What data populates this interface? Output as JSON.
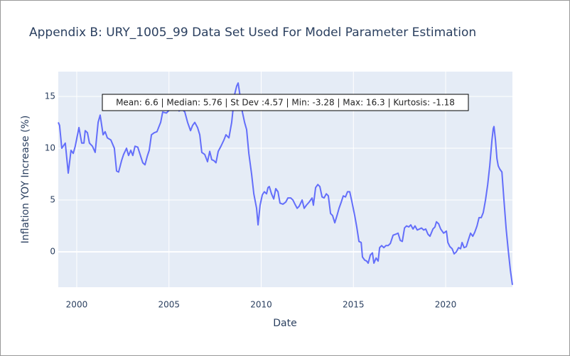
{
  "chart_data": {
    "type": "line",
    "title": "Appendix B: URY_1005_99 Data Set Used For Model Parameter Estimation",
    "x_label": "Date",
    "y_label": "Inflation YOY Increase (%)",
    "annotation": "Mean: 6.6 | Median: 5.76 | St Dev :4.57 | Min: -3.28 | Max: 16.3 | Kurtosis: -1.18",
    "grid": true,
    "xlim": [
      1999.0,
      2023.62
    ],
    "xticks": [
      2000,
      2005,
      2010,
      2015,
      2020
    ],
    "ylim": [
      -3.42,
      17.4
    ],
    "yticks": [
      0,
      5,
      10,
      15
    ],
    "series": [
      {
        "color": "#636efa",
        "x": [
          1999.0,
          1999.07,
          1999.19,
          1999.38,
          1999.54,
          1999.69,
          1999.81,
          1999.92,
          2000.12,
          2000.27,
          2000.39,
          2000.46,
          2000.58,
          2000.69,
          2000.85,
          2001.0,
          2001.16,
          2001.27,
          2001.43,
          2001.54,
          2001.66,
          2001.85,
          2002.04,
          2002.16,
          2002.27,
          2002.43,
          2002.54,
          2002.7,
          2002.81,
          2002.93,
          2003.04,
          2003.16,
          2003.31,
          2003.47,
          2003.58,
          2003.7,
          2003.82,
          2003.93,
          2004.05,
          2004.2,
          2004.35,
          2004.55,
          2004.66,
          2004.86,
          2004.97,
          2005.09,
          2005.24,
          2005.36,
          2005.55,
          2005.7,
          2005.86,
          2006.01,
          2006.17,
          2006.28,
          2006.4,
          2006.55,
          2006.67,
          2006.78,
          2006.94,
          2007.09,
          2007.21,
          2007.32,
          2007.44,
          2007.55,
          2007.67,
          2007.82,
          2007.98,
          2008.09,
          2008.25,
          2008.4,
          2008.56,
          2008.67,
          2008.75,
          2008.86,
          2008.98,
          2009.1,
          2009.21,
          2009.33,
          2009.48,
          2009.6,
          2009.75,
          2009.83,
          2009.94,
          2010.06,
          2010.17,
          2010.29,
          2010.37,
          2010.44,
          2010.56,
          2010.68,
          2010.79,
          2010.91,
          2011.02,
          2011.18,
          2011.33,
          2011.45,
          2011.6,
          2011.72,
          2011.83,
          2011.95,
          2012.06,
          2012.22,
          2012.33,
          2012.45,
          2012.6,
          2012.76,
          2012.83,
          2012.95,
          2013.07,
          2013.18,
          2013.3,
          2013.41,
          2013.53,
          2013.64,
          2013.76,
          2013.87,
          2013.99,
          2014.11,
          2014.22,
          2014.34,
          2014.45,
          2014.57,
          2014.68,
          2014.8,
          2014.91,
          2015.07,
          2015.18,
          2015.3,
          2015.42,
          2015.49,
          2015.61,
          2015.72,
          2015.8,
          2015.92,
          2016.03,
          2016.11,
          2016.23,
          2016.34,
          2016.42,
          2016.53,
          2016.65,
          2016.76,
          2016.88,
          2017.0,
          2017.15,
          2017.3,
          2017.42,
          2017.54,
          2017.65,
          2017.77,
          2017.88,
          2018.0,
          2018.11,
          2018.23,
          2018.34,
          2018.46,
          2018.58,
          2018.69,
          2018.81,
          2018.92,
          2019.04,
          2019.15,
          2019.31,
          2019.42,
          2019.5,
          2019.62,
          2019.73,
          2019.89,
          2020.04,
          2020.12,
          2020.23,
          2020.35,
          2020.46,
          2020.58,
          2020.7,
          2020.81,
          2020.89,
          2021.0,
          2021.12,
          2021.24,
          2021.35,
          2021.47,
          2021.58,
          2021.7,
          2021.81,
          2021.93,
          2022.04,
          2022.16,
          2022.28,
          2022.39,
          2022.51,
          2022.58,
          2022.62,
          2022.7,
          2022.78,
          2022.85,
          2022.93,
          2023.05,
          2023.16,
          2023.28,
          2023.39,
          2023.51,
          2023.62
        ],
        "values": [
          12.5,
          12.2,
          10.0,
          10.5,
          7.6,
          9.8,
          9.5,
          10.2,
          12.0,
          10.5,
          10.5,
          11.7,
          11.5,
          10.5,
          10.2,
          9.6,
          12.5,
          13.2,
          11.3,
          11.6,
          11.0,
          10.8,
          10.0,
          7.8,
          7.7,
          8.8,
          9.4,
          10.0,
          9.3,
          9.8,
          9.3,
          10.2,
          10.1,
          9.2,
          8.6,
          8.4,
          9.2,
          9.8,
          11.3,
          11.5,
          11.6,
          12.5,
          13.5,
          13.4,
          13.6,
          14.0,
          14.2,
          14.5,
          13.6,
          13.8,
          13.5,
          12.5,
          11.7,
          12.2,
          12.5,
          12.0,
          11.3,
          9.6,
          9.4,
          8.7,
          9.7,
          8.9,
          8.8,
          8.6,
          9.7,
          10.2,
          10.8,
          11.3,
          11.0,
          12.5,
          15.2,
          16.0,
          16.3,
          15.0,
          13.5,
          12.5,
          11.8,
          9.5,
          7.5,
          5.6,
          4.2,
          2.6,
          4.5,
          5.5,
          5.8,
          5.6,
          6.2,
          6.3,
          5.6,
          5.1,
          6.1,
          5.8,
          4.7,
          4.6,
          4.8,
          5.2,
          5.2,
          5.0,
          4.6,
          4.2,
          4.4,
          5.0,
          4.2,
          4.5,
          4.8,
          5.2,
          4.5,
          6.2,
          6.5,
          6.3,
          5.3,
          5.2,
          5.6,
          5.4,
          3.7,
          3.5,
          2.8,
          3.5,
          4.2,
          4.8,
          5.4,
          5.3,
          5.8,
          5.8,
          4.9,
          3.5,
          2.4,
          1.0,
          0.9,
          -0.5,
          -0.8,
          -0.9,
          -1.1,
          -0.3,
          -0.1,
          -1.1,
          -0.6,
          -0.9,
          0.4,
          0.6,
          0.4,
          0.6,
          0.6,
          0.8,
          1.6,
          1.7,
          1.8,
          1.1,
          1.0,
          2.3,
          2.5,
          2.4,
          2.6,
          2.2,
          2.5,
          2.1,
          2.2,
          2.3,
          2.1,
          2.2,
          1.7,
          1.5,
          2.2,
          2.4,
          2.9,
          2.7,
          2.2,
          1.8,
          2.0,
          0.9,
          0.5,
          0.3,
          -0.2,
          0.0,
          0.4,
          0.3,
          0.9,
          0.4,
          0.5,
          1.2,
          1.8,
          1.5,
          1.9,
          2.5,
          3.3,
          3.3,
          3.8,
          5.0,
          6.5,
          8.3,
          10.8,
          11.9,
          12.1,
          10.8,
          9.0,
          8.3,
          8.0,
          7.7,
          5.0,
          2.2,
          0.2,
          -1.8,
          -3.2
        ]
      }
    ]
  }
}
